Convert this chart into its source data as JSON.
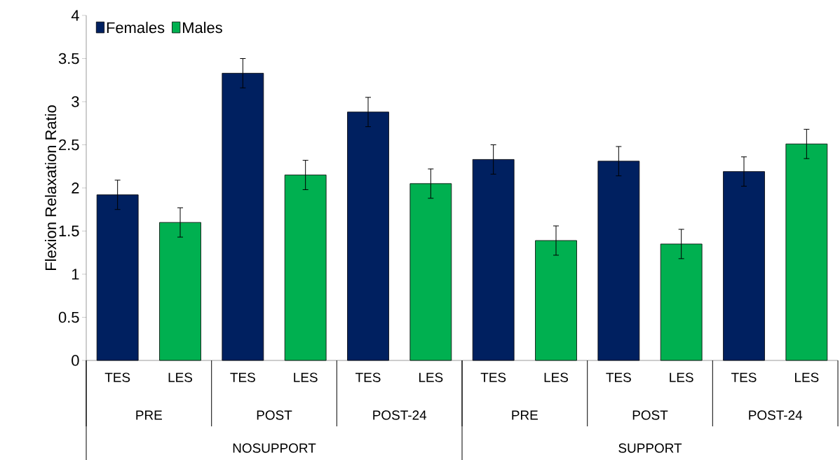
{
  "chart_data": {
    "type": "bar",
    "ylabel": "Flexion Relaxation Ratio",
    "categories": [
      "TES",
      "LES",
      "TES",
      "LES",
      "TES",
      "LES",
      "TES",
      "LES",
      "TES",
      "LES",
      "TES",
      "LES"
    ],
    "series": [
      {
        "name": "Females",
        "color": "#002060",
        "values": [
          1.92,
          null,
          3.33,
          null,
          2.88,
          null,
          2.33,
          null,
          2.31,
          null,
          2.19,
          null
        ],
        "errors": [
          0.17,
          null,
          0.17,
          null,
          0.17,
          null,
          0.17,
          null,
          0.17,
          null,
          0.17,
          null
        ]
      },
      {
        "name": "Males",
        "color": "#00b050",
        "values": [
          null,
          1.6,
          null,
          2.15,
          null,
          2.05,
          null,
          1.39,
          null,
          1.35,
          null,
          2.51
        ],
        "errors": [
          null,
          0.17,
          null,
          0.17,
          null,
          0.17,
          null,
          0.17,
          null,
          0.17,
          null,
          0.17
        ]
      }
    ],
    "annotations": [
      "PRE",
      "POST",
      "POST-24",
      "PRE",
      "POST",
      "POST-24",
      "NOSUPPORT",
      "SUPPORT"
    ],
    "ylim": [
      0,
      4
    ],
    "yticks": [
      0,
      0.5,
      1,
      1.5,
      2,
      2.5,
      3,
      3.5,
      4
    ],
    "grid": false,
    "legend": "top left"
  }
}
